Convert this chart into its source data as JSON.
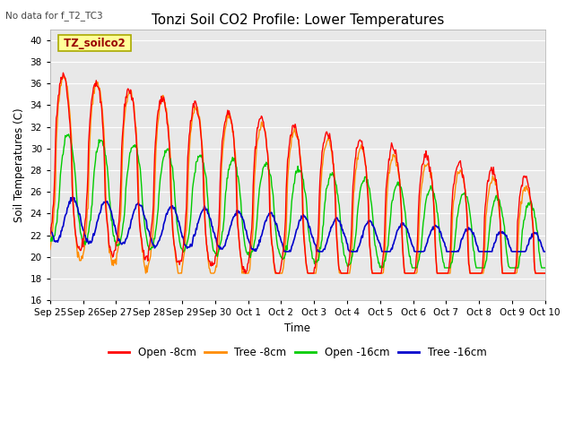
{
  "title": "Tonzi Soil CO2 Profile: Lower Temperatures",
  "subtitle": "No data for f_T2_TC3",
  "ylabel": "Soil Temperatures (C)",
  "xlabel": "Time",
  "legend_label": "TZ_soilco2",
  "ylim": [
    16,
    41
  ],
  "yticks": [
    16,
    18,
    20,
    22,
    24,
    26,
    28,
    30,
    32,
    34,
    36,
    38,
    40
  ],
  "xtick_labels": [
    "Sep 25",
    "Sep 26",
    "Sep 27",
    "Sep 28",
    "Sep 29",
    "Sep 30",
    "Oct 1",
    "Oct 2",
    "Oct 3",
    "Oct 4",
    "Oct 5",
    "Oct 6",
    "Oct 7",
    "Oct 8",
    "Oct 9",
    "Oct 10"
  ],
  "series": {
    "open_8cm": {
      "color": "#FF0000",
      "label": "Open -8cm"
    },
    "tree_8cm": {
      "color": "#FF8C00",
      "label": "Tree -8cm"
    },
    "open_16cm": {
      "color": "#00CC00",
      "label": "Open -16cm"
    },
    "tree_16cm": {
      "color": "#0000CC",
      "label": "Tree -16cm"
    }
  },
  "bg_color": "#E8E8E8",
  "grid_color": "#FFFFFF",
  "legend_box_color": "#FFFF99",
  "legend_box_edge": "#AAAA00"
}
